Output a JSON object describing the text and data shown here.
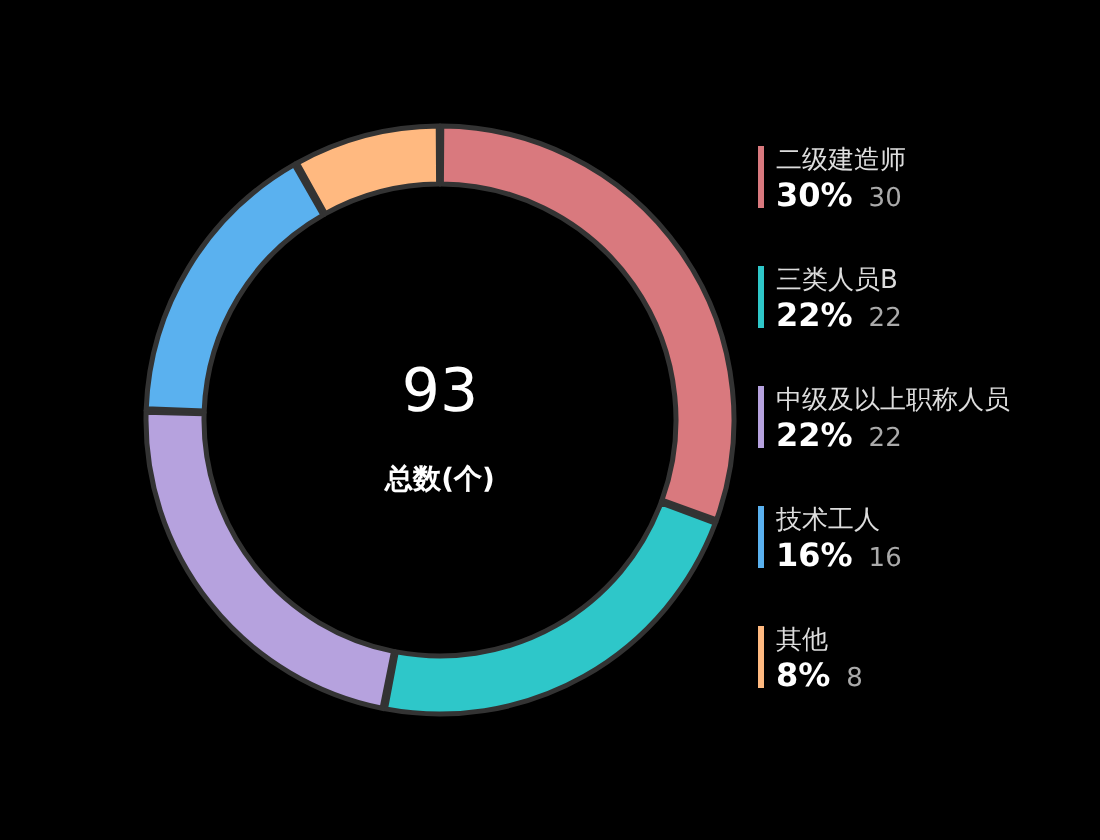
{
  "chart_data": {
    "type": "donut",
    "categories": [
      "二级建造师",
      "三类人员B",
      "中级及以上职称人员",
      "技术工人",
      "其他"
    ],
    "values": [
      30,
      22,
      22,
      16,
      8
    ],
    "colors": [
      "#d9797e",
      "#2ec7c9",
      "#b6a2de",
      "#5ab1ef",
      "#ffb980"
    ],
    "value_labels": [
      "30% 30",
      "22% 22",
      "22% 22",
      "16% 16",
      "8% 8"
    ],
    "legend": "right",
    "annotations": [
      "93",
      "总数(个)"
    ]
  }
}
